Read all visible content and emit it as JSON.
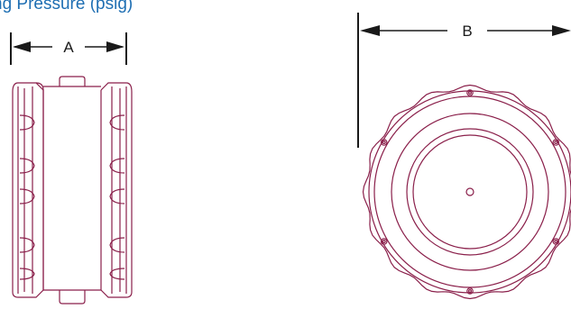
{
  "title": "ng Pressure (psig)",
  "dimensions": {
    "a_label": "A",
    "b_label": "B"
  },
  "colors": {
    "title_text": "#1f6fb3",
    "dimension_lines": "#1a1a1a",
    "part_outline": "#8a1f4a"
  },
  "views": {
    "side": "side-view",
    "front": "front-view"
  }
}
